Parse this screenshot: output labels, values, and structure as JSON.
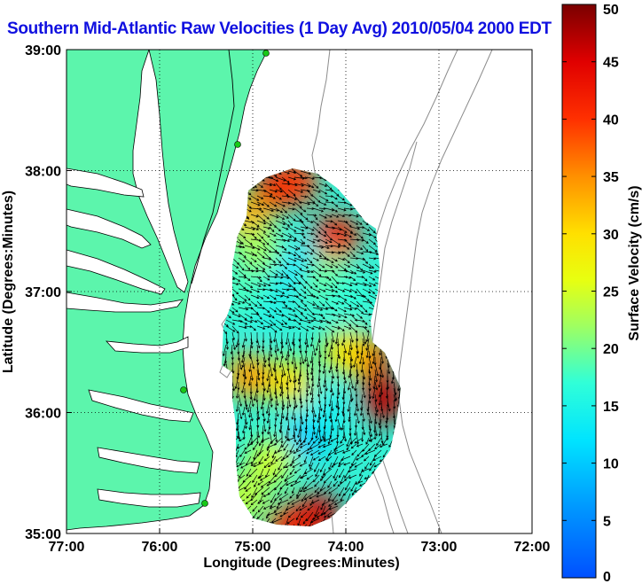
{
  "title": "Southern Mid-Atlantic Raw Velocities (1 Day Avg) 2010/05/04 2000 EDT",
  "colors": {
    "land": "#5cf5ac",
    "water": "#ffffff",
    "coast_line": "#000000",
    "isobath": "#8c8c8c",
    "title": "#1010e0",
    "station": "#18c818"
  },
  "map": {
    "lon_range": [
      -77,
      -72
    ],
    "lat_range": [
      35,
      39
    ],
    "grid": true,
    "grid_style": "dotted"
  },
  "axes": {
    "xlabel": "Longitude (Degrees:Minutes)",
    "ylabel": "Latitude (Degrees:Minutes)",
    "x_ticks": [
      {
        "value": -77,
        "label": "77:00"
      },
      {
        "value": -76,
        "label": "76:00"
      },
      {
        "value": -75,
        "label": "75:00"
      },
      {
        "value": -74,
        "label": "74:00"
      },
      {
        "value": -73,
        "label": "73:00"
      },
      {
        "value": -72,
        "label": "72:00"
      }
    ],
    "y_ticks": [
      {
        "value": 39,
        "label": "39:00"
      },
      {
        "value": 38,
        "label": "38:00"
      },
      {
        "value": 37,
        "label": "37:00"
      },
      {
        "value": 36,
        "label": "36:00"
      },
      {
        "value": 35,
        "label": "35:00"
      }
    ]
  },
  "colorbar": {
    "label": "Surface Velocity (cm/s)",
    "min": 0,
    "max": 50,
    "ticks": [
      {
        "value": 0,
        "label": "0"
      },
      {
        "value": 5,
        "label": "5"
      },
      {
        "value": 10,
        "label": "10"
      },
      {
        "value": 15,
        "label": "15"
      },
      {
        "value": 20,
        "label": "20"
      },
      {
        "value": 25,
        "label": "25"
      },
      {
        "value": 30,
        "label": "30"
      },
      {
        "value": 35,
        "label": "35"
      },
      {
        "value": 40,
        "label": "40"
      },
      {
        "value": 45,
        "label": "45"
      },
      {
        "value": 50,
        "label": "50"
      }
    ]
  },
  "chart_data": {
    "type": "heatmap",
    "field": "surface current speed with velocity vectors",
    "hotspots": [
      {
        "lon": -74.75,
        "lat": 37.85,
        "speed": 44
      },
      {
        "lon": -74.55,
        "lat": 37.9,
        "speed": 40
      },
      {
        "lon": -75.05,
        "lat": 37.6,
        "speed": 33
      },
      {
        "lon": -74.1,
        "lat": 37.45,
        "speed": 42
      },
      {
        "lon": -73.6,
        "lat": 36.1,
        "speed": 47
      },
      {
        "lon": -73.75,
        "lat": 36.45,
        "speed": 44
      },
      {
        "lon": -74.3,
        "lat": 35.15,
        "speed": 46
      },
      {
        "lon": -74.6,
        "lat": 35.05,
        "speed": 42
      },
      {
        "lon": -75.05,
        "lat": 36.3,
        "speed": 34
      },
      {
        "lon": -74.6,
        "lat": 36.25,
        "speed": 30
      },
      {
        "lon": -74.0,
        "lat": 36.5,
        "speed": 30
      },
      {
        "lon": -74.8,
        "lat": 35.6,
        "speed": 25
      },
      {
        "lon": -75.1,
        "lat": 35.3,
        "speed": 24
      },
      {
        "lon": -74.9,
        "lat": 36.9,
        "speed": 14
      },
      {
        "lon": -74.5,
        "lat": 37.2,
        "speed": 12
      },
      {
        "lon": -74.4,
        "lat": 35.8,
        "speed": 10
      },
      {
        "lon": -74.2,
        "lat": 36.0,
        "speed": 14
      },
      {
        "lon": -75.1,
        "lat": 37.0,
        "speed": 18
      },
      {
        "lon": -74.2,
        "lat": 37.1,
        "speed": 20
      },
      {
        "lon": -74.0,
        "lat": 36.95,
        "speed": 17
      },
      {
        "lon": -74.95,
        "lat": 37.35,
        "speed": 22
      }
    ]
  }
}
